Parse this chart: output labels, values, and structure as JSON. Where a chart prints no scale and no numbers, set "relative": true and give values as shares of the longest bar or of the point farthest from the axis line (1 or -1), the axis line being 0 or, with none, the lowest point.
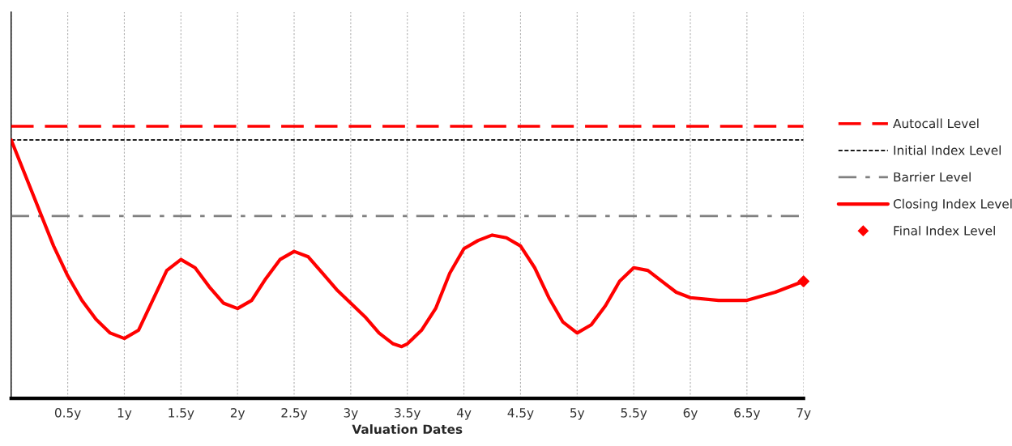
{
  "chart_data": {
    "type": "line",
    "relative": true,
    "xlabel": "Valuation Dates",
    "xlim": [
      0,
      7
    ],
    "xticks": [
      {
        "value": 0,
        "label": null
      },
      {
        "value": 0.5,
        "label": "0.5y"
      },
      {
        "value": 1,
        "label": "1y"
      },
      {
        "value": 1.5,
        "label": "1.5y"
      },
      {
        "value": 2,
        "label": "2y"
      },
      {
        "value": 2.5,
        "label": "2.5y"
      },
      {
        "value": 3,
        "label": "3y"
      },
      {
        "value": 3.5,
        "label": "3.5y"
      },
      {
        "value": 4,
        "label": "4y"
      },
      {
        "value": 4.5,
        "label": "4.5y"
      },
      {
        "value": 5,
        "label": "5y"
      },
      {
        "value": 5.5,
        "label": "5.5y"
      },
      {
        "value": 6,
        "label": "6y"
      },
      {
        "value": 6.5,
        "label": "6.5y"
      },
      {
        "value": 7,
        "label": "7y"
      }
    ],
    "grid": "x",
    "legend": "right",
    "tick_labels": "x",
    "series": [
      {
        "name": "Autocall Level",
        "color": "#ff0000",
        "line_style": "dashed",
        "x": [
          0,
          7
        ],
        "values": [
          1.0,
          1.0
        ]
      },
      {
        "name": "Initial Index Level",
        "color": "#000000",
        "line_style": "dotted",
        "x": [
          0,
          7
        ],
        "values": [
          0.95,
          0.95
        ]
      },
      {
        "name": "Barrier Level",
        "color": "#808080",
        "line_style": "dashdot",
        "x": [
          0,
          7
        ],
        "values": [
          0.67,
          0.67
        ]
      },
      {
        "name": "Closing Index Level",
        "color": "#ff0000",
        "line_style": "solid",
        "x": [
          0,
          0.25,
          0.375,
          0.5,
          0.625,
          0.75,
          0.875,
          1.0,
          1.125,
          1.25,
          1.375,
          1.5,
          1.625,
          1.75,
          1.875,
          2.0,
          2.125,
          2.25,
          2.375,
          2.5,
          2.625,
          2.75,
          2.875,
          3.0,
          3.125,
          3.25,
          3.375,
          3.45,
          3.5,
          3.625,
          3.75,
          3.875,
          4.0,
          4.125,
          4.25,
          4.375,
          4.5,
          4.625,
          4.75,
          4.875,
          5.0,
          5.125,
          5.25,
          5.375,
          5.5,
          5.625,
          5.75,
          5.875,
          6.0,
          6.25,
          6.5,
          6.75,
          7.0
        ],
        "values": [
          0.95,
          0.69,
          0.56,
          0.45,
          0.36,
          0.29,
          0.24,
          0.22,
          0.25,
          0.36,
          0.47,
          0.51,
          0.48,
          0.41,
          0.35,
          0.33,
          0.36,
          0.44,
          0.51,
          0.54,
          0.52,
          0.46,
          0.4,
          0.35,
          0.3,
          0.24,
          0.2,
          0.19,
          0.2,
          0.25,
          0.33,
          0.46,
          0.55,
          0.58,
          0.6,
          0.59,
          0.56,
          0.48,
          0.37,
          0.28,
          0.24,
          0.27,
          0.34,
          0.43,
          0.48,
          0.47,
          0.43,
          0.39,
          0.37,
          0.36,
          0.36,
          0.39,
          0.43
        ]
      },
      {
        "name": "Final Index Level",
        "type": "scatter",
        "marker": "diamond",
        "color": "#ff0000",
        "x": [
          7
        ],
        "values": [
          0.43
        ]
      }
    ]
  }
}
